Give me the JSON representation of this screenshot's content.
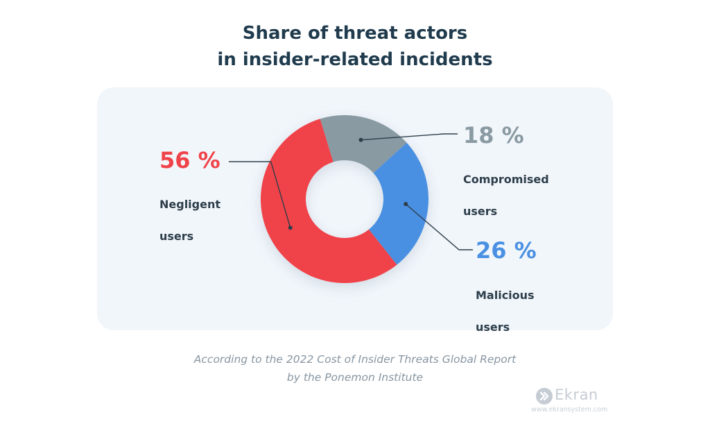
{
  "chart_data": {
    "type": "pie",
    "title_line1": "Share of threat actors",
    "title_line2": "in insider-related incidents",
    "slices": [
      {
        "name": "Compromised users",
        "value": 18,
        "label": "18 %",
        "text_line1": "Compromised",
        "text_line2": "users",
        "color": "#8a9aa3"
      },
      {
        "name": "Malicious users",
        "value": 26,
        "label": "26 %",
        "text_line1": "Malicious",
        "text_line2": "users",
        "color": "#4a90e2"
      },
      {
        "name": "Negligent users",
        "value": 56,
        "label": "56 %",
        "text_line1": "Negligent",
        "text_line2": "users",
        "color": "#f04349"
      }
    ],
    "legend": "none"
  },
  "source": {
    "line1": "According to the 2022 Cost of Insider Threats Global Report",
    "line2": "by the Ponemon Institute"
  },
  "brand": {
    "name": "Ekran",
    "url": "www.ekransystem.com",
    "logo_icon": "double-chevron-icon"
  }
}
